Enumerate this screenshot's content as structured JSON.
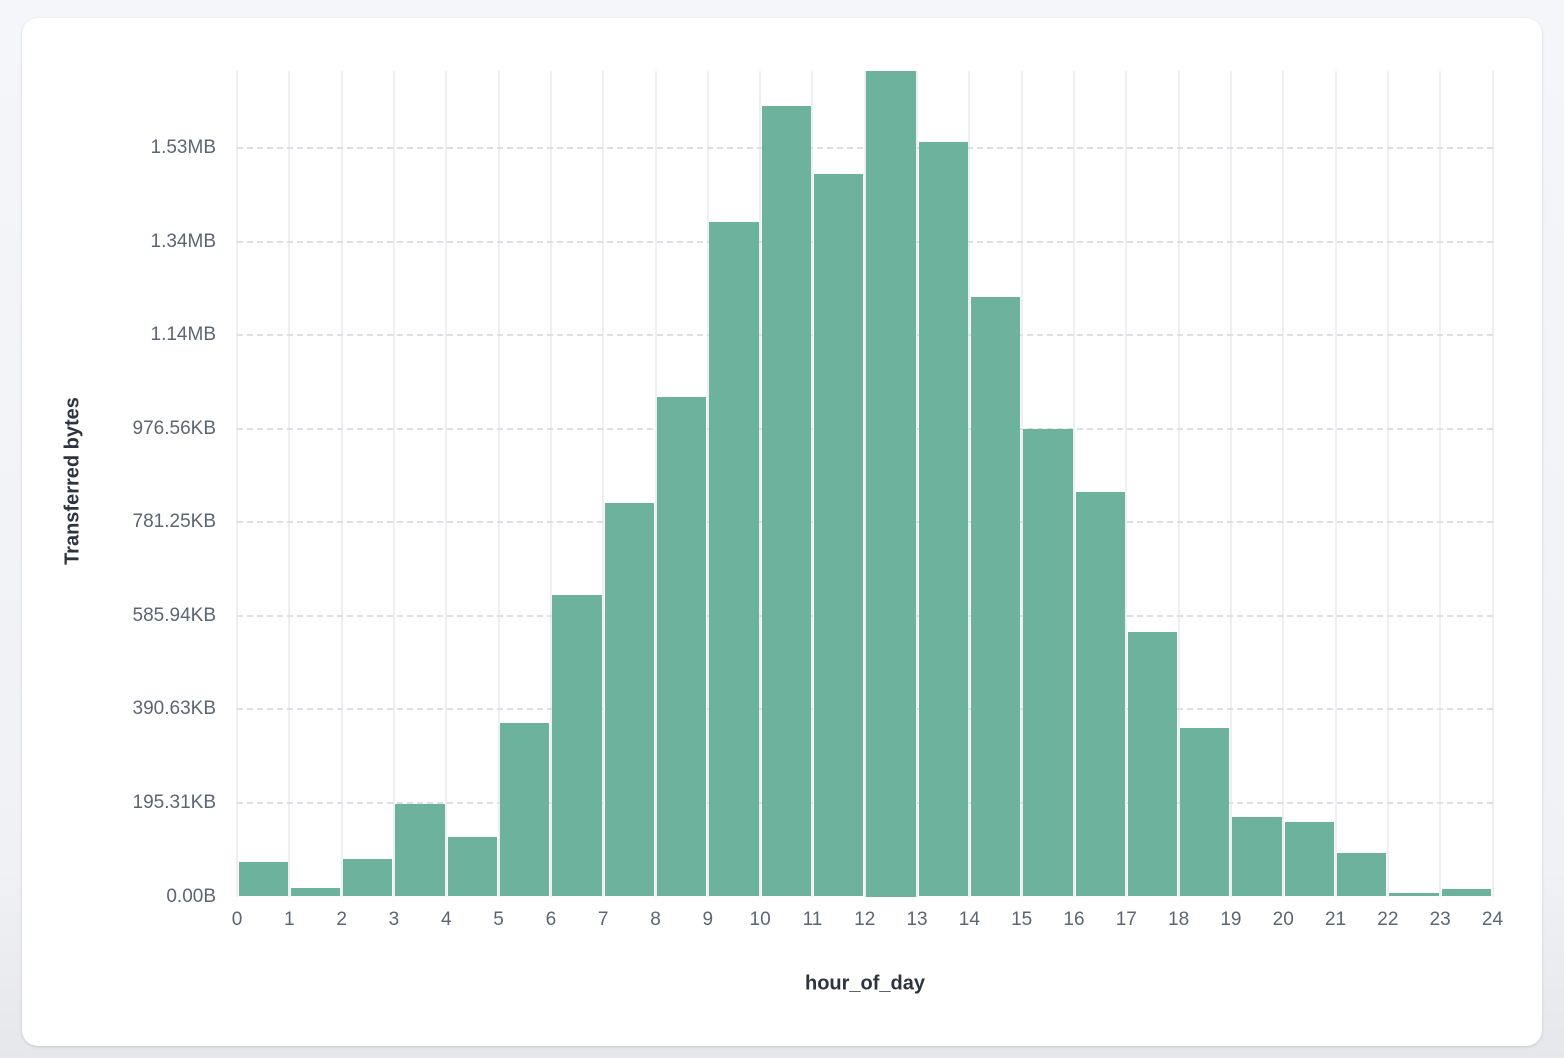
{
  "chart_data": {
    "type": "bar",
    "title": "",
    "xlabel": "hour_of_day",
    "ylabel": "Transferred bytes",
    "categories": [
      0,
      1,
      2,
      3,
      4,
      5,
      6,
      7,
      8,
      9,
      10,
      11,
      12,
      13,
      14,
      15,
      16,
      17,
      18,
      19,
      20,
      21,
      22,
      23
    ],
    "values": [
      74000,
      18000,
      80000,
      198000,
      127000,
      371000,
      644000,
      841000,
      1068000,
      1443000,
      1691000,
      1545000,
      1766000,
      1613000,
      1281000,
      1000000,
      865000,
      565000,
      360000,
      171000,
      159000,
      93000,
      7000,
      15000
    ],
    "x_tick_labels": [
      "0",
      "1",
      "2",
      "3",
      "4",
      "5",
      "6",
      "7",
      "8",
      "9",
      "10",
      "11",
      "12",
      "13",
      "14",
      "15",
      "16",
      "17",
      "18",
      "19",
      "20",
      "21",
      "22",
      "23",
      "24"
    ],
    "y_ticks": [
      {
        "value": 0,
        "label": "0.00B"
      },
      {
        "value": 200000,
        "label": "195.31KB"
      },
      {
        "value": 400000,
        "label": "390.63KB"
      },
      {
        "value": 600000,
        "label": "585.94KB"
      },
      {
        "value": 800000,
        "label": "781.25KB"
      },
      {
        "value": 1000000,
        "label": "976.56KB"
      },
      {
        "value": 1200000,
        "label": "1.14MB"
      },
      {
        "value": 1400000,
        "label": "1.34MB"
      },
      {
        "value": 1600000,
        "label": "1.53MB"
      }
    ],
    "xlim": [
      0,
      24
    ],
    "ylim": [
      0,
      1766000
    ],
    "grid": true,
    "legend_position": "none",
    "bar_color": "#6db29c",
    "card_background": "#ffffff",
    "page_background": "#eff1f5"
  }
}
